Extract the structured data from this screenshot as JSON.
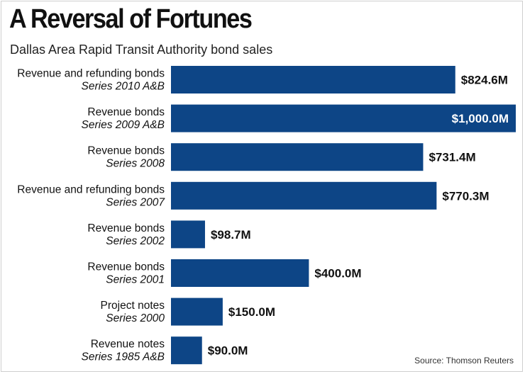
{
  "title": "A Reversal of Fortunes",
  "subtitle": "Dallas Area Rapid Transit Authority bond sales",
  "source": "Source: Thomson Reuters",
  "colors": {
    "bar": "#0d4586",
    "label_outside": "#111111",
    "label_inside": "#ffffff"
  },
  "chart_data": {
    "type": "bar",
    "orientation": "horizontal",
    "categories": [
      {
        "name": "Revenue and refunding bonds",
        "series": "Series 2010 A&B"
      },
      {
        "name": "Revenue bonds",
        "series": "Series 2009 A&B"
      },
      {
        "name": "Revenue bonds",
        "series": "Series 2008"
      },
      {
        "name": "Revenue and refunding bonds",
        "series": "Series 2007"
      },
      {
        "name": "Revenue bonds",
        "series": "Series 2002"
      },
      {
        "name": "Revenue bonds",
        "series": "Series 2001"
      },
      {
        "name": "Project notes",
        "series": "Series 2000"
      },
      {
        "name": "Revenue notes",
        "series": "Series 1985 A&B"
      }
    ],
    "values": [
      824.6,
      1000.0,
      731.4,
      770.3,
      98.7,
      400.0,
      150.0,
      90.0
    ],
    "value_labels": [
      "$824.6M",
      "$1,000.0M",
      "$731.4M",
      "$770.3M",
      "$98.7M",
      "$400.0M",
      "$150.0M",
      "$90.0M"
    ],
    "unit": "$ millions",
    "xlim": [
      0,
      1000
    ],
    "grid": false,
    "legend": "none"
  }
}
